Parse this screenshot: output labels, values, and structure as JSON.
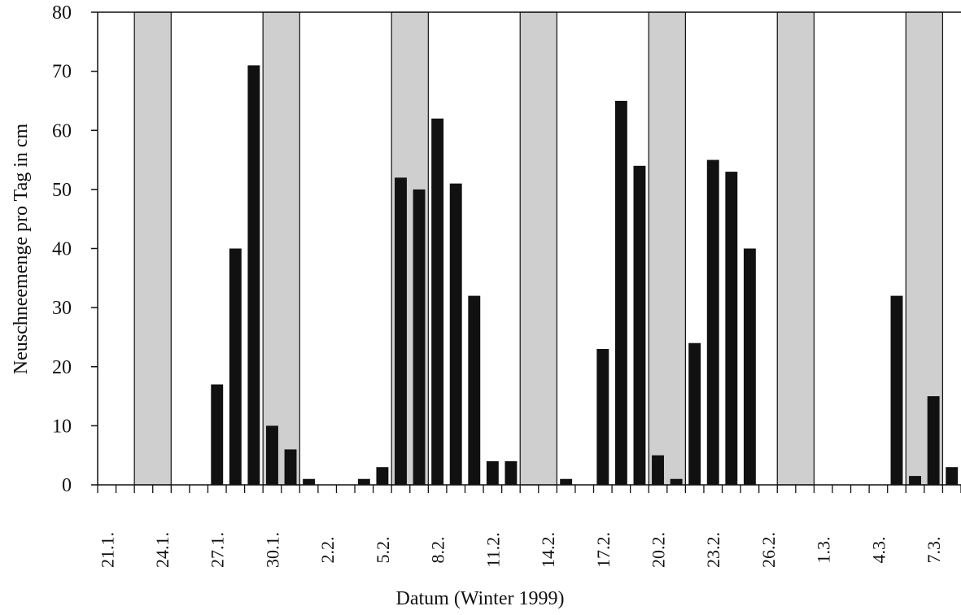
{
  "chart_data": {
    "type": "bar",
    "title": "",
    "xlabel": "Datum (Winter 1999)",
    "ylabel": "Neuschneemenge  pro Tag in cm",
    "ylim": [
      0,
      80
    ],
    "yticks": [
      0,
      10,
      20,
      30,
      40,
      50,
      60,
      70,
      80
    ],
    "x_start": "21.1.",
    "x_end": "8.3.",
    "xtick_labels": [
      "21.1.",
      "24.1.",
      "27.1.",
      "30.1.",
      "2.2.",
      "5.2.",
      "8.2.",
      "11.2.",
      "14.2.",
      "17.2.",
      "20.2.",
      "23.2.",
      "26.2.",
      "1.3.",
      "4.3.",
      "7.3."
    ],
    "grid": false,
    "weekend_shading": true,
    "shaded_days": [
      {
        "from": "23.1.",
        "to": "24.1."
      },
      {
        "from": "30.1.",
        "to": "31.1."
      },
      {
        "from": "6.2.",
        "to": "7.2."
      },
      {
        "from": "13.2.",
        "to": "14.2."
      },
      {
        "from": "20.2.",
        "to": "21.2."
      },
      {
        "from": "27.2.",
        "to": "28.2."
      },
      {
        "from": "6.3.",
        "to": "7.3."
      }
    ],
    "categories": [
      "21.1.",
      "22.1.",
      "23.1.",
      "24.1.",
      "25.1.",
      "26.1.",
      "27.1.",
      "28.1.",
      "29.1.",
      "30.1.",
      "31.1.",
      "1.2.",
      "2.2.",
      "3.2.",
      "4.2.",
      "5.2.",
      "6.2.",
      "7.2.",
      "8.2.",
      "9.2.",
      "10.2.",
      "11.2.",
      "12.2.",
      "13.2.",
      "14.2.",
      "15.2.",
      "16.2.",
      "17.2.",
      "18.2.",
      "19.2.",
      "20.2.",
      "21.2.",
      "22.2.",
      "23.2.",
      "24.2.",
      "25.2.",
      "26.2.",
      "27.2.",
      "28.2.",
      "1.3.",
      "2.3.",
      "3.3.",
      "4.3.",
      "5.3.",
      "6.3.",
      "7.3.",
      "8.3."
    ],
    "values": [
      0,
      0,
      0,
      0,
      0,
      0,
      17,
      40,
      71,
      10,
      6,
      1,
      0,
      0,
      1,
      3,
      52,
      50,
      62,
      51,
      32,
      4,
      4,
      0,
      0,
      1,
      0,
      23,
      65,
      54,
      5,
      1,
      24,
      55,
      53,
      40,
      0,
      0,
      0,
      0,
      0,
      0,
      0,
      32,
      1.5,
      15,
      3
    ],
    "colors": {
      "bar": "#111111",
      "shade": "#cfcfcf",
      "axis": "#111111"
    }
  }
}
